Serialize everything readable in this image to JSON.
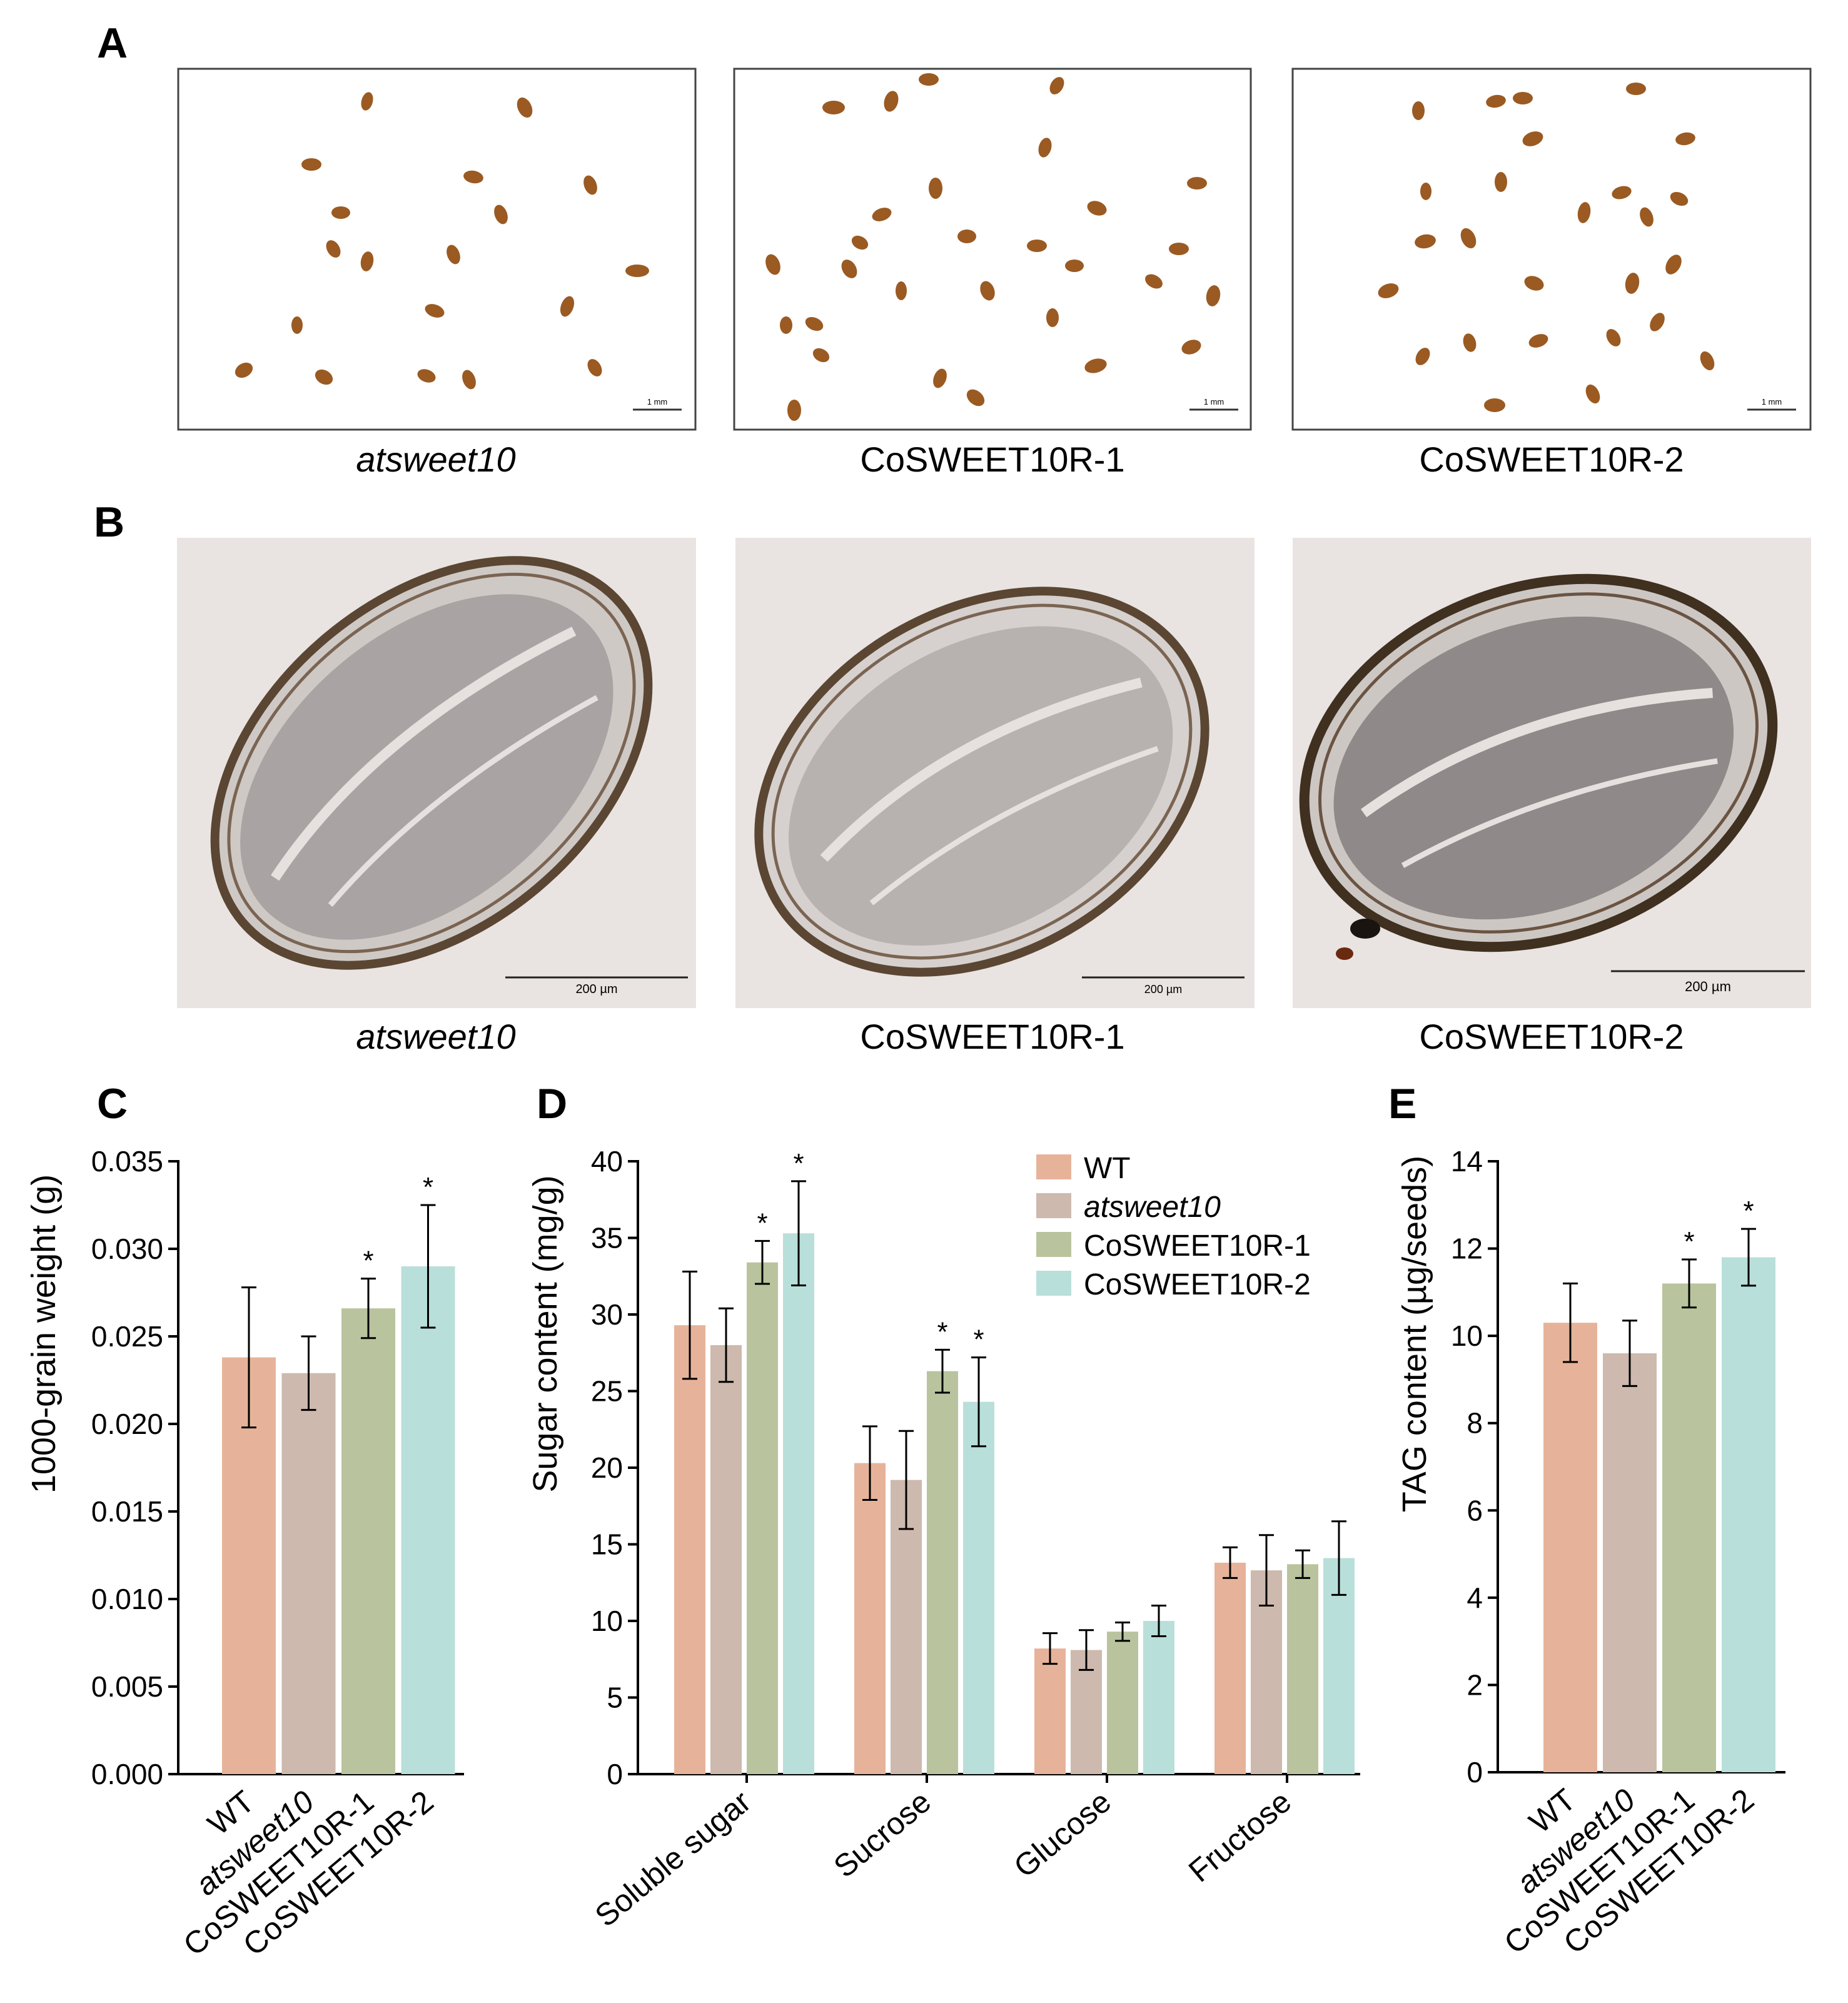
{
  "panels": {
    "A": {
      "letter": "A",
      "images": [
        {
          "caption": "atsweet10",
          "italic": true,
          "scale_bar": "1 mm"
        },
        {
          "caption": "CoSWEET10R-1",
          "italic": false,
          "scale_bar": "1 mm"
        },
        {
          "caption": "CoSWEET10R-2",
          "italic": false,
          "scale_bar": "1 mm"
        }
      ]
    },
    "B": {
      "letter": "B",
      "images": [
        {
          "caption": "atsweet10",
          "italic": true,
          "scale_bar": "200 µm"
        },
        {
          "caption": "CoSWEET10R-1",
          "italic": false,
          "scale_bar": "200 µm"
        },
        {
          "caption": "CoSWEET10R-2",
          "italic": false,
          "scale_bar": "200 µm"
        }
      ]
    }
  },
  "colors": {
    "WT": "#e6b39a",
    "atsweet10": "#cdb9ad",
    "CoSWEET10R-1": "#b9c49e",
    "CoSWEET10R-2": "#b9dfda",
    "seed": "#9a5a22",
    "micrograph_bg": "#e9e4e1",
    "section_wall": "#5a4632",
    "section_inner": "#a9a3a3"
  },
  "chart_data": [
    {
      "panel": "C",
      "type": "bar",
      "ylabel": "1000-grain weight (g)",
      "ylim": [
        0,
        0.035
      ],
      "yticks": [
        "0.000",
        "0.005",
        "0.010",
        "0.015",
        "0.020",
        "0.025",
        "0.030",
        "0.035"
      ],
      "categories": [
        "WT",
        "atsweet10",
        "CoSWEET10R-1",
        "CoSWEET10R-2"
      ],
      "italic_categories": [
        "atsweet10"
      ],
      "values": [
        0.0238,
        0.0229,
        0.0266,
        0.029
      ],
      "errors": [
        0.004,
        0.0021,
        0.0017,
        0.0035
      ],
      "significance": [
        "",
        "",
        "*",
        "*"
      ]
    },
    {
      "panel": "D",
      "type": "bar",
      "ylabel": "Sugar content (mg/g)",
      "ylim": [
        0,
        40
      ],
      "yticks": [
        "0",
        "5",
        "10",
        "15",
        "20",
        "25",
        "30",
        "35",
        "40"
      ],
      "categories": [
        "Soluble sugar",
        "Sucrose",
        "Glucose",
        "Fructose"
      ],
      "legend": [
        "WT",
        "atsweet10",
        "CoSWEET10R-1",
        "CoSWEET10R-2"
      ],
      "legend_position": "top-right",
      "series": [
        {
          "name": "WT",
          "values": [
            29.3,
            20.3,
            8.2,
            13.8
          ],
          "errors": [
            3.5,
            2.4,
            1.0,
            1.0
          ],
          "significance": [
            "",
            "",
            "",
            ""
          ]
        },
        {
          "name": "atsweet10",
          "values": [
            28.0,
            19.2,
            8.1,
            13.3
          ],
          "errors": [
            2.4,
            3.2,
            1.3,
            2.3
          ],
          "significance": [
            "",
            "",
            "",
            ""
          ]
        },
        {
          "name": "CoSWEET10R-1",
          "values": [
            33.4,
            26.3,
            9.3,
            13.7
          ],
          "errors": [
            1.4,
            1.4,
            0.6,
            0.9
          ],
          "significance": [
            "*",
            "*",
            "",
            ""
          ]
        },
        {
          "name": "CoSWEET10R-2",
          "values": [
            35.3,
            24.3,
            10.0,
            14.1
          ],
          "errors": [
            3.4,
            2.9,
            1.0,
            2.4
          ],
          "significance": [
            "*",
            "*",
            "",
            ""
          ]
        }
      ]
    },
    {
      "panel": "E",
      "type": "bar",
      "ylabel": "TAG content (µg/seeds)",
      "ylim": [
        0,
        14
      ],
      "yticks": [
        "0",
        "2",
        "4",
        "6",
        "8",
        "10",
        "12",
        "14"
      ],
      "categories": [
        "WT",
        "atsweet10",
        "CoSWEET10R-1",
        "CoSWEET10R-2"
      ],
      "italic_categories": [
        "atsweet10"
      ],
      "values": [
        10.3,
        9.6,
        11.2,
        11.8
      ],
      "errors": [
        0.9,
        0.75,
        0.55,
        0.65
      ],
      "significance": [
        "",
        "",
        "*",
        "*"
      ]
    }
  ]
}
